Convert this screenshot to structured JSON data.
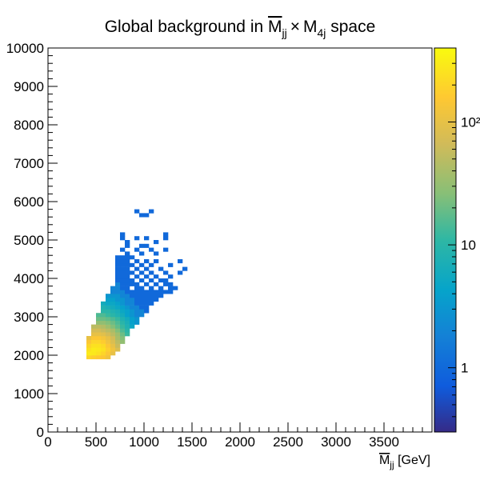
{
  "chart_data": {
    "type": "heatmap",
    "title": {
      "prefix": "Global background in ",
      "var1_base": "M",
      "var1_sub": "jj",
      "var1_overline": true,
      "times": "×",
      "var2_base": "M",
      "var2_sub": "4j",
      "suffix": " space"
    },
    "xlabel": {
      "base": "M",
      "sub": "jj",
      "overline": true,
      "unit": " [GeV]"
    },
    "ylabel": "",
    "xlim": [
      0,
      4000
    ],
    "ylim": [
      0,
      10000
    ],
    "x_tick_labels": [
      "0",
      "500",
      "1000",
      "1500",
      "2000",
      "2500",
      "3000",
      "3500"
    ],
    "y_tick_labels": [
      "0",
      "1000",
      "2000",
      "3000",
      "4000",
      "5000",
      "6000",
      "7000",
      "8000",
      "9000",
      "10000"
    ],
    "colorbar": {
      "scale": "log",
      "min": 0.3,
      "max": 400,
      "tick_values": [
        1,
        10,
        100
      ],
      "tick_labels": [
        "1",
        "10",
        "10²"
      ],
      "palette": "kBird"
    },
    "bin_width_x": 50,
    "bin_width_y": 100,
    "bins": [
      [
        425,
        1950,
        200
      ],
      [
        475,
        1950,
        180
      ],
      [
        525,
        1950,
        160
      ],
      [
        575,
        1950,
        150
      ],
      [
        625,
        1950,
        120
      ],
      [
        425,
        2050,
        300
      ],
      [
        475,
        2050,
        280
      ],
      [
        525,
        2050,
        250
      ],
      [
        575,
        2050,
        200
      ],
      [
        625,
        2050,
        150
      ],
      [
        675,
        2050,
        100
      ],
      [
        425,
        2150,
        250
      ],
      [
        475,
        2150,
        300
      ],
      [
        525,
        2150,
        280
      ],
      [
        575,
        2150,
        250
      ],
      [
        625,
        2150,
        180
      ],
      [
        675,
        2150,
        120
      ],
      [
        725,
        2150,
        80
      ],
      [
        425,
        2250,
        200
      ],
      [
        475,
        2250,
        250
      ],
      [
        525,
        2250,
        250
      ],
      [
        575,
        2250,
        220
      ],
      [
        625,
        2250,
        150
      ],
      [
        675,
        2250,
        100
      ],
      [
        725,
        2250,
        60
      ],
      [
        425,
        2350,
        150
      ],
      [
        475,
        2350,
        200
      ],
      [
        525,
        2350,
        200
      ],
      [
        575,
        2350,
        170
      ],
      [
        625,
        2350,
        120
      ],
      [
        675,
        2350,
        80
      ],
      [
        725,
        2350,
        50
      ],
      [
        775,
        2350,
        30
      ],
      [
        425,
        2450,
        100
      ],
      [
        475,
        2450,
        150
      ],
      [
        525,
        2450,
        150
      ],
      [
        575,
        2450,
        130
      ],
      [
        625,
        2450,
        100
      ],
      [
        675,
        2450,
        70
      ],
      [
        725,
        2450,
        40
      ],
      [
        775,
        2450,
        25
      ],
      [
        475,
        2550,
        100
      ],
      [
        525,
        2550,
        100
      ],
      [
        575,
        2550,
        90
      ],
      [
        625,
        2550,
        70
      ],
      [
        675,
        2550,
        50
      ],
      [
        725,
        2550,
        35
      ],
      [
        775,
        2550,
        20
      ],
      [
        825,
        2550,
        12
      ],
      [
        475,
        2650,
        70
      ],
      [
        525,
        2650,
        70
      ],
      [
        575,
        2650,
        60
      ],
      [
        625,
        2650,
        50
      ],
      [
        675,
        2650,
        40
      ],
      [
        725,
        2650,
        25
      ],
      [
        775,
        2650,
        15
      ],
      [
        825,
        2650,
        10
      ],
      [
        475,
        2750,
        50
      ],
      [
        525,
        2750,
        50
      ],
      [
        575,
        2750,
        45
      ],
      [
        625,
        2750,
        35
      ],
      [
        675,
        2750,
        25
      ],
      [
        725,
        2750,
        18
      ],
      [
        775,
        2750,
        12
      ],
      [
        825,
        2750,
        8
      ],
      [
        875,
        2750,
        5
      ],
      [
        525,
        2850,
        30
      ],
      [
        575,
        2850,
        30
      ],
      [
        625,
        2850,
        25
      ],
      [
        675,
        2850,
        20
      ],
      [
        725,
        2850,
        15
      ],
      [
        775,
        2850,
        10
      ],
      [
        825,
        2850,
        7
      ],
      [
        875,
        2850,
        4
      ],
      [
        925,
        2850,
        3
      ],
      [
        525,
        2950,
        20
      ],
      [
        575,
        2950,
        20
      ],
      [
        625,
        2950,
        18
      ],
      [
        675,
        2950,
        15
      ],
      [
        725,
        2950,
        12
      ],
      [
        775,
        2950,
        8
      ],
      [
        825,
        2950,
        6
      ],
      [
        875,
        2950,
        4
      ],
      [
        925,
        2950,
        3
      ],
      [
        525,
        3050,
        15
      ],
      [
        575,
        3050,
        15
      ],
      [
        625,
        3050,
        12
      ],
      [
        675,
        3050,
        10
      ],
      [
        725,
        3050,
        8
      ],
      [
        775,
        3050,
        6
      ],
      [
        825,
        3050,
        4
      ],
      [
        875,
        3050,
        3
      ],
      [
        925,
        3050,
        2
      ],
      [
        975,
        3050,
        2
      ],
      [
        575,
        3150,
        10
      ],
      [
        625,
        3150,
        10
      ],
      [
        675,
        3150,
        8
      ],
      [
        725,
        3150,
        7
      ],
      [
        775,
        3150,
        5
      ],
      [
        825,
        3150,
        4
      ],
      [
        875,
        3150,
        3
      ],
      [
        925,
        3150,
        2
      ],
      [
        975,
        3150,
        2
      ],
      [
        1025,
        3150,
        1
      ],
      [
        575,
        3250,
        8
      ],
      [
        625,
        3250,
        7
      ],
      [
        675,
        3250,
        6
      ],
      [
        725,
        3250,
        5
      ],
      [
        775,
        3250,
        4
      ],
      [
        825,
        3250,
        3
      ],
      [
        875,
        3250,
        2
      ],
      [
        925,
        3250,
        2
      ],
      [
        975,
        3250,
        1
      ],
      [
        1025,
        3250,
        1
      ],
      [
        575,
        3350,
        6
      ],
      [
        625,
        3350,
        5
      ],
      [
        675,
        3350,
        5
      ],
      [
        725,
        3350,
        4
      ],
      [
        775,
        3350,
        3
      ],
      [
        825,
        3350,
        2
      ],
      [
        875,
        3350,
        2
      ],
      [
        925,
        3350,
        1
      ],
      [
        975,
        3350,
        1
      ],
      [
        1025,
        3350,
        1
      ],
      [
        1075,
        3350,
        1
      ],
      [
        625,
        3450,
        4
      ],
      [
        675,
        3450,
        4
      ],
      [
        725,
        3450,
        3
      ],
      [
        775,
        3450,
        3
      ],
      [
        825,
        3450,
        2
      ],
      [
        875,
        3450,
        2
      ],
      [
        925,
        3450,
        1
      ],
      [
        975,
        3450,
        1
      ],
      [
        1025,
        3450,
        1
      ],
      [
        1075,
        3450,
        1
      ],
      [
        1125,
        3450,
        1
      ],
      [
        625,
        3550,
        3
      ],
      [
        675,
        3550,
        3
      ],
      [
        725,
        3550,
        3
      ],
      [
        775,
        3550,
        2
      ],
      [
        825,
        3550,
        2
      ],
      [
        875,
        3550,
        1
      ],
      [
        925,
        3550,
        1
      ],
      [
        975,
        3550,
        1
      ],
      [
        1025,
        3550,
        1
      ],
      [
        1075,
        3550,
        1
      ],
      [
        1125,
        3550,
        1
      ],
      [
        1175,
        3550,
        1
      ],
      [
        675,
        3650,
        2
      ],
      [
        725,
        3650,
        2
      ],
      [
        775,
        3650,
        2
      ],
      [
        825,
        3650,
        1
      ],
      [
        875,
        3650,
        1
      ],
      [
        925,
        3650,
        1
      ],
      [
        975,
        3650,
        1
      ],
      [
        1025,
        3650,
        1
      ],
      [
        1075,
        3650,
        1
      ],
      [
        1125,
        3650,
        1
      ],
      [
        1175,
        3650,
        1
      ],
      [
        1225,
        3650,
        1
      ],
      [
        1275,
        3650,
        1
      ],
      [
        675,
        3750,
        2
      ],
      [
        725,
        3750,
        2
      ],
      [
        775,
        3750,
        1
      ],
      [
        825,
        3750,
        1
      ],
      [
        925,
        3750,
        1
      ],
      [
        975,
        3750,
        1
      ],
      [
        1075,
        3750,
        1
      ],
      [
        1175,
        3750,
        1
      ],
      [
        1275,
        3750,
        1
      ],
      [
        1325,
        3750,
        1
      ],
      [
        725,
        3850,
        2
      ],
      [
        775,
        3850,
        1
      ],
      [
        825,
        3850,
        1
      ],
      [
        875,
        3850,
        1
      ],
      [
        925,
        3850,
        1
      ],
      [
        1025,
        3850,
        1
      ],
      [
        1125,
        3850,
        1
      ],
      [
        1225,
        3850,
        1
      ],
      [
        1275,
        3850,
        1
      ],
      [
        725,
        3950,
        1
      ],
      [
        775,
        3950,
        1
      ],
      [
        825,
        3950,
        1
      ],
      [
        875,
        3950,
        1
      ],
      [
        975,
        3950,
        1
      ],
      [
        1075,
        3950,
        1
      ],
      [
        1175,
        3950,
        1
      ],
      [
        1225,
        3950,
        1
      ],
      [
        725,
        4050,
        1
      ],
      [
        775,
        4050,
        1
      ],
      [
        825,
        4050,
        1
      ],
      [
        925,
        4050,
        1
      ],
      [
        1025,
        4050,
        1
      ],
      [
        1125,
        4050,
        1
      ],
      [
        1275,
        4050,
        1
      ],
      [
        725,
        4150,
        1
      ],
      [
        775,
        4150,
        1
      ],
      [
        825,
        4150,
        1
      ],
      [
        875,
        4150,
        1
      ],
      [
        975,
        4150,
        1
      ],
      [
        1075,
        4150,
        1
      ],
      [
        1225,
        4150,
        1
      ],
      [
        1375,
        4150,
        1
      ],
      [
        725,
        4250,
        1
      ],
      [
        775,
        4250,
        1
      ],
      [
        825,
        4250,
        1
      ],
      [
        925,
        4250,
        1
      ],
      [
        1025,
        4250,
        1
      ],
      [
        1175,
        4250,
        1
      ],
      [
        1425,
        4250,
        1
      ],
      [
        725,
        4350,
        1
      ],
      [
        775,
        4350,
        1
      ],
      [
        825,
        4350,
        1
      ],
      [
        875,
        4350,
        1
      ],
      [
        975,
        4350,
        1
      ],
      [
        1075,
        4350,
        1
      ],
      [
        1275,
        4350,
        1
      ],
      [
        725,
        4450,
        1
      ],
      [
        775,
        4450,
        1
      ],
      [
        825,
        4450,
        1
      ],
      [
        925,
        4450,
        1
      ],
      [
        1025,
        4450,
        1
      ],
      [
        1125,
        4450,
        1
      ],
      [
        1375,
        4450,
        1
      ],
      [
        725,
        4550,
        1
      ],
      [
        775,
        4550,
        1
      ],
      [
        825,
        4550,
        1
      ],
      [
        875,
        4550,
        1
      ],
      [
        825,
        4650,
        1
      ],
      [
        975,
        4650,
        1
      ],
      [
        1125,
        4650,
        1
      ],
      [
        775,
        4750,
        1
      ],
      [
        925,
        4750,
        1
      ],
      [
        1075,
        4750,
        1
      ],
      [
        1225,
        4750,
        1
      ],
      [
        825,
        4850,
        1
      ],
      [
        975,
        4850,
        1
      ],
      [
        1025,
        4850,
        1
      ],
      [
        825,
        4950,
        1
      ],
      [
        1125,
        4950,
        1
      ],
      [
        775,
        5050,
        1
      ],
      [
        925,
        5050,
        1
      ],
      [
        1025,
        5050,
        1
      ],
      [
        1225,
        5050,
        1
      ],
      [
        775,
        5150,
        1
      ],
      [
        1225,
        5150,
        1
      ],
      [
        975,
        5650,
        1
      ],
      [
        1025,
        5650,
        1
      ],
      [
        925,
        5750,
        1
      ],
      [
        1075,
        5750,
        1
      ]
    ]
  }
}
